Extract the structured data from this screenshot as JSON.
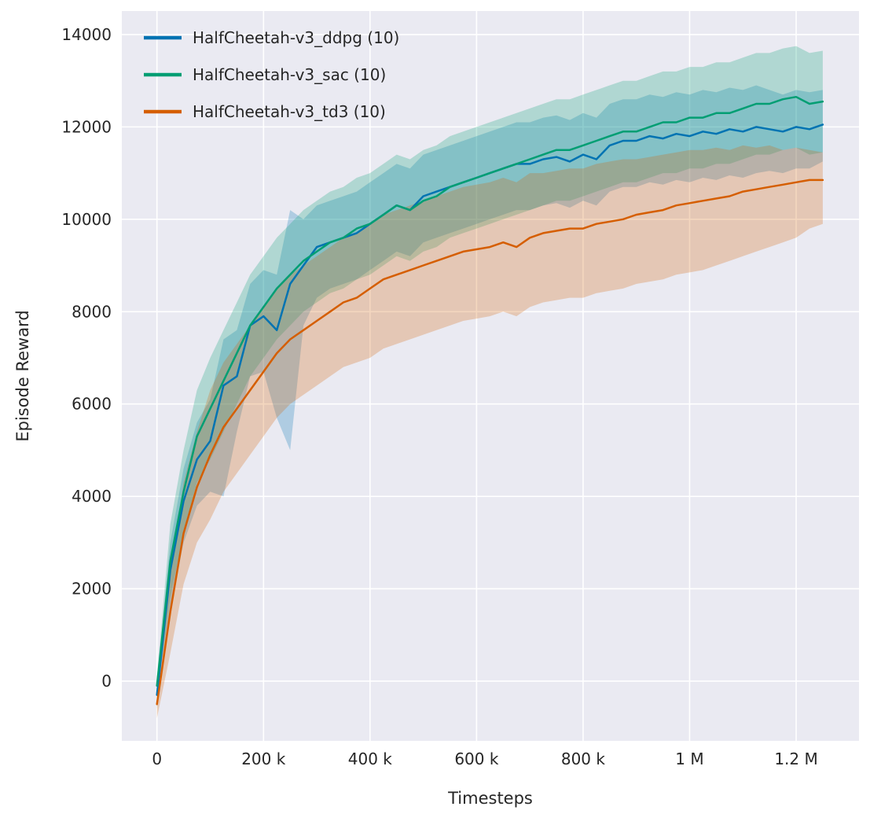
{
  "figure": {
    "background": "#ffffff",
    "panel_background": "#eaeaf2",
    "grid_color": "#ffffff",
    "text_color": "#262626"
  },
  "chart_data": {
    "type": "line",
    "title": "",
    "xlabel": "Timesteps",
    "ylabel": "Episode Reward",
    "x_units": "thousands of timesteps",
    "grid": true,
    "legend_position": "upper left",
    "band_opacity": 0.25,
    "xlim": [
      -66,
      1318
    ],
    "ylim": [
      -1294,
      14510
    ],
    "x_ticks": [
      {
        "value": 0,
        "label": "0"
      },
      {
        "value": 200,
        "label": "200 k"
      },
      {
        "value": 400,
        "label": "400 k"
      },
      {
        "value": 600,
        "label": "600 k"
      },
      {
        "value": 800,
        "label": "800 k"
      },
      {
        "value": 1000,
        "label": "1 M"
      },
      {
        "value": 1200,
        "label": "1.2 M"
      }
    ],
    "y_ticks": [
      {
        "value": 0,
        "label": "0"
      },
      {
        "value": 2000,
        "label": "2000"
      },
      {
        "value": 4000,
        "label": "4000"
      },
      {
        "value": 6000,
        "label": "6000"
      },
      {
        "value": 8000,
        "label": "8000"
      },
      {
        "value": 10000,
        "label": "10000"
      },
      {
        "value": 12000,
        "label": "12000"
      },
      {
        "value": 14000,
        "label": "14000"
      }
    ],
    "x": [
      0,
      25,
      50,
      75,
      100,
      125,
      150,
      175,
      200,
      225,
      250,
      275,
      300,
      325,
      350,
      375,
      400,
      425,
      450,
      475,
      500,
      525,
      550,
      575,
      600,
      625,
      650,
      675,
      700,
      725,
      750,
      775,
      800,
      825,
      850,
      875,
      900,
      925,
      950,
      975,
      1000,
      1025,
      1050,
      1075,
      1100,
      1125,
      1150,
      1175,
      1200,
      1225,
      1250
    ],
    "series": [
      {
        "key": "ddpg",
        "name": "HalfCheetah-v3_ddpg (10)",
        "color": "#0173b2",
        "mean": [
          -300,
          2400,
          3900,
          4800,
          5200,
          6400,
          6600,
          7700,
          7900,
          7600,
          8600,
          9000,
          9400,
          9500,
          9600,
          9700,
          9900,
          10100,
          10300,
          10200,
          10500,
          10600,
          10700,
          10800,
          10900,
          11000,
          11100,
          11200,
          11200,
          11300,
          11350,
          11250,
          11400,
          11300,
          11600,
          11700,
          11700,
          11800,
          11750,
          11850,
          11800,
          11900,
          11850,
          11950,
          11900,
          12000,
          11950,
          11900,
          12000,
          11950,
          12050
        ],
        "low": [
          -600,
          1600,
          3000,
          3800,
          4100,
          4000,
          5400,
          6600,
          6700,
          5700,
          5000,
          7700,
          8300,
          8500,
          8600,
          8700,
          8900,
          9100,
          9300,
          9200,
          9500,
          9600,
          9700,
          9800,
          9900,
          10000,
          10100,
          10200,
          10200,
          10300,
          10350,
          10250,
          10400,
          10300,
          10600,
          10700,
          10700,
          10800,
          10750,
          10850,
          10800,
          10900,
          10850,
          10950,
          10900,
          11000,
          11050,
          11000,
          11100,
          11100,
          11250
        ],
        "high": [
          0,
          3000,
          4600,
          5600,
          6100,
          7400,
          7600,
          8600,
          8900,
          8800,
          10200,
          10000,
          10300,
          10400,
          10500,
          10600,
          10800,
          11000,
          11200,
          11100,
          11400,
          11500,
          11600,
          11700,
          11800,
          11900,
          12000,
          12100,
          12100,
          12200,
          12250,
          12150,
          12300,
          12200,
          12500,
          12600,
          12600,
          12700,
          12650,
          12750,
          12700,
          12800,
          12750,
          12850,
          12800,
          12900,
          12800,
          12700,
          12800,
          12750,
          12800
        ]
      },
      {
        "key": "sac",
        "name": "HalfCheetah-v3_sac (10)",
        "color": "#029e73",
        "mean": [
          -100,
          2600,
          4100,
          5300,
          5900,
          6500,
          7100,
          7700,
          8100,
          8500,
          8800,
          9100,
          9300,
          9500,
          9600,
          9800,
          9900,
          10100,
          10300,
          10200,
          10400,
          10500,
          10700,
          10800,
          10900,
          11000,
          11100,
          11200,
          11300,
          11400,
          11500,
          11500,
          11600,
          11700,
          11800,
          11900,
          11900,
          12000,
          12100,
          12100,
          12200,
          12200,
          12300,
          12300,
          12400,
          12500,
          12500,
          12600,
          12650,
          12500,
          12550
        ],
        "low": [
          -300,
          1800,
          3200,
          4300,
          4800,
          5400,
          6000,
          6600,
          7000,
          7400,
          7700,
          8000,
          8200,
          8400,
          8500,
          8700,
          8800,
          9000,
          9200,
          9100,
          9300,
          9400,
          9600,
          9700,
          9800,
          9900,
          10000,
          10100,
          10200,
          10300,
          10400,
          10400,
          10500,
          10600,
          10700,
          10800,
          10800,
          10900,
          11000,
          11000,
          11100,
          11100,
          11200,
          11200,
          11300,
          11400,
          11400,
          11500,
          11550,
          11400,
          11450
        ],
        "high": [
          100,
          3400,
          5000,
          6300,
          7000,
          7600,
          8200,
          8800,
          9200,
          9600,
          9900,
          10200,
          10400,
          10600,
          10700,
          10900,
          11000,
          11200,
          11400,
          11300,
          11500,
          11600,
          11800,
          11900,
          12000,
          12100,
          12200,
          12300,
          12400,
          12500,
          12600,
          12600,
          12700,
          12800,
          12900,
          13000,
          13000,
          13100,
          13200,
          13200,
          13300,
          13300,
          13400,
          13400,
          13500,
          13600,
          13600,
          13700,
          13750,
          13600,
          13650
        ]
      },
      {
        "key": "td3",
        "name": "HalfCheetah-v3_td3 (10)",
        "color": "#d55e00",
        "mean": [
          -500,
          1500,
          3200,
          4200,
          4900,
          5500,
          5900,
          6300,
          6700,
          7100,
          7400,
          7600,
          7800,
          8000,
          8200,
          8300,
          8500,
          8700,
          8800,
          8900,
          9000,
          9100,
          9200,
          9300,
          9350,
          9400,
          9500,
          9400,
          9600,
          9700,
          9750,
          9800,
          9800,
          9900,
          9950,
          10000,
          10100,
          10150,
          10200,
          10300,
          10350,
          10400,
          10450,
          10500,
          10600,
          10650,
          10700,
          10750,
          10800,
          10850,
          10850
        ],
        "low": [
          -800,
          600,
          2100,
          3000,
          3500,
          4100,
          4500,
          4900,
          5300,
          5700,
          6000,
          6200,
          6400,
          6600,
          6800,
          6900,
          7000,
          7200,
          7300,
          7400,
          7500,
          7600,
          7700,
          7800,
          7850,
          7900,
          8000,
          7900,
          8100,
          8200,
          8250,
          8300,
          8300,
          8400,
          8450,
          8500,
          8600,
          8650,
          8700,
          8800,
          8850,
          8900,
          9000,
          9100,
          9200,
          9300,
          9400,
          9500,
          9600,
          9800,
          9900
        ],
        "high": [
          -200,
          2400,
          4300,
          5400,
          6300,
          6900,
          7300,
          7700,
          8100,
          8500,
          8800,
          9000,
          9200,
          9400,
          9600,
          9700,
          9900,
          10100,
          10200,
          10300,
          10400,
          10500,
          10600,
          10700,
          10750,
          10800,
          10900,
          10800,
          11000,
          11000,
          11050,
          11100,
          11100,
          11200,
          11250,
          11300,
          11300,
          11350,
          11400,
          11450,
          11500,
          11500,
          11550,
          11500,
          11600,
          11550,
          11600,
          11500,
          11550,
          11500,
          11450
        ]
      }
    ]
  }
}
